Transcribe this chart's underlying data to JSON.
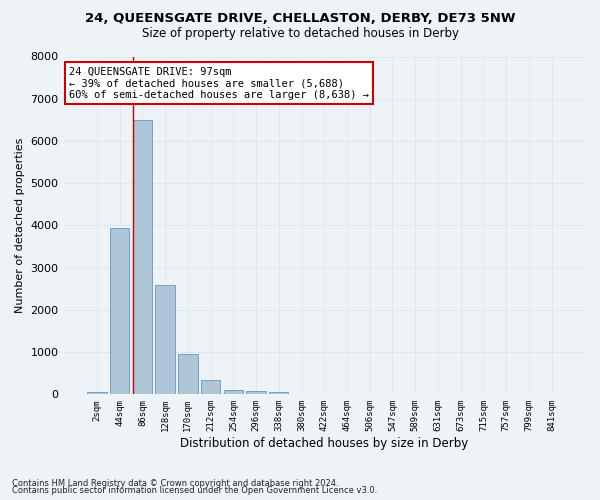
{
  "title": "24, QUEENSGATE DRIVE, CHELLASTON, DERBY, DE73 5NW",
  "subtitle": "Size of property relative to detached houses in Derby",
  "xlabel": "Distribution of detached houses by size in Derby",
  "ylabel": "Number of detached properties",
  "footnote1": "Contains HM Land Registry data © Crown copyright and database right 2024.",
  "footnote2": "Contains public sector information licensed under the Open Government Licence v3.0.",
  "bar_labels": [
    "2sqm",
    "44sqm",
    "86sqm",
    "128sqm",
    "170sqm",
    "212sqm",
    "254sqm",
    "296sqm",
    "338sqm",
    "380sqm",
    "422sqm",
    "464sqm",
    "506sqm",
    "547sqm",
    "589sqm",
    "631sqm",
    "673sqm",
    "715sqm",
    "757sqm",
    "799sqm",
    "841sqm"
  ],
  "bar_values": [
    60,
    3950,
    6500,
    2600,
    960,
    330,
    100,
    70,
    50,
    0,
    0,
    0,
    0,
    0,
    0,
    0,
    0,
    0,
    0,
    0,
    0
  ],
  "bar_color": "#aec6d8",
  "bar_edge_color": "#6699bb",
  "grid_color": "#dce8f0",
  "background_color": "#eef3f8",
  "vline_x_bar_idx": 2,
  "vline_color": "#cc0000",
  "annotation_text": "24 QUEENSGATE DRIVE: 97sqm\n← 39% of detached houses are smaller (5,688)\n60% of semi-detached houses are larger (8,638) →",
  "annotation_box_facecolor": "#ffffff",
  "annotation_box_edgecolor": "#cc0000",
  "ylim": [
    0,
    8000
  ],
  "yticks": [
    0,
    1000,
    2000,
    3000,
    4000,
    5000,
    6000,
    7000,
    8000
  ]
}
